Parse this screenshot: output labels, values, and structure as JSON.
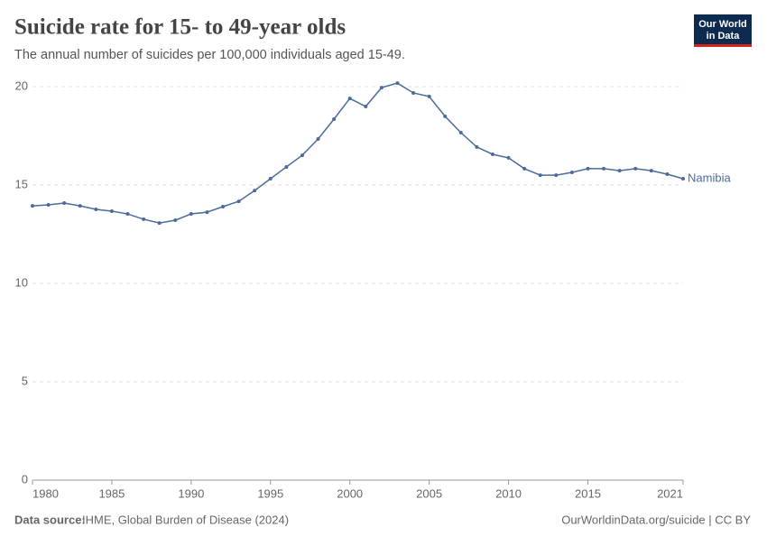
{
  "chart_data": {
    "type": "line",
    "title": "Suicide rate for 15- to 49-year olds",
    "subtitle": "The annual number of suicides per 100,000 individuals aged 15-49.",
    "logo": [
      "Our World",
      "in Data"
    ],
    "source_label": "Data source:",
    "source": "IHME, Global Burden of Disease (2024)",
    "credit": "OurWorldinData.org/suicide | CC BY",
    "x": [
      1980,
      1981,
      1982,
      1983,
      1984,
      1985,
      1986,
      1987,
      1988,
      1989,
      1990,
      1991,
      1992,
      1993,
      1994,
      1995,
      1996,
      1997,
      1998,
      1999,
      2000,
      2001,
      2002,
      2003,
      2004,
      2005,
      2006,
      2007,
      2008,
      2009,
      2010,
      2011,
      2012,
      2013,
      2014,
      2015,
      2016,
      2017,
      2018,
      2019,
      2020,
      2021
    ],
    "series": [
      {
        "name": "Namibia",
        "color": "#4c6a9c",
        "values": [
          13.94,
          13.99,
          14.08,
          13.94,
          13.76,
          13.67,
          13.53,
          13.26,
          13.07,
          13.21,
          13.53,
          13.62,
          13.9,
          14.17,
          14.72,
          15.32,
          15.92,
          16.51,
          17.34,
          18.35,
          19.4,
          18.99,
          19.95,
          20.18,
          19.68,
          19.5,
          18.49,
          17.66,
          16.93,
          16.56,
          16.38,
          15.83,
          15.5,
          15.5,
          15.64,
          15.83,
          15.83,
          15.73,
          15.83,
          15.73,
          15.55,
          15.32
        ]
      }
    ],
    "xlim": [
      1980,
      2021
    ],
    "xticks": [
      1980,
      1985,
      1990,
      1995,
      2000,
      2005,
      2010,
      2015,
      2021
    ],
    "ylim": [
      0,
      20
    ],
    "yticks": [
      0,
      5,
      10,
      15,
      20
    ],
    "grid": true
  }
}
